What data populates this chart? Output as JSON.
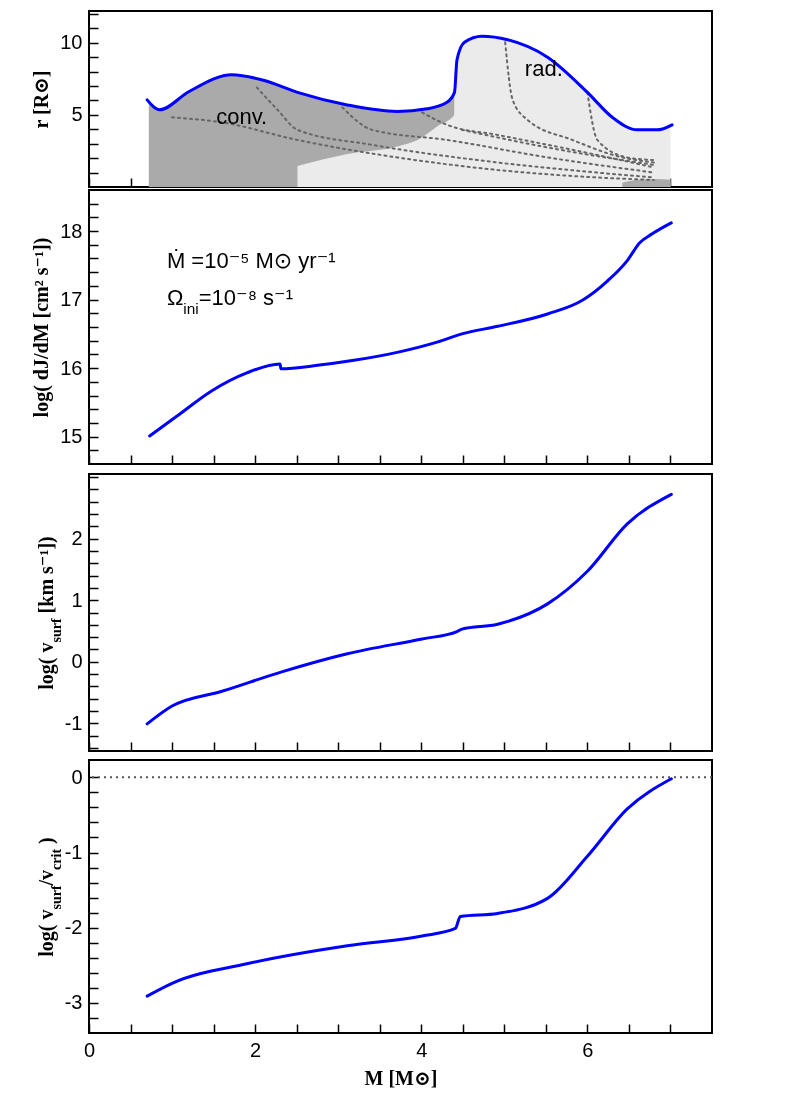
{
  "chart_data": [
    {
      "type": "line",
      "ylabel": "r [R⊙]",
      "xlim": [
        0,
        7.5
      ],
      "ylim": [
        0,
        12.2
      ],
      "tick_labels": "y",
      "grid": false,
      "xticks": [
        0,
        {
          "value": 0.5,
          "label": null
        },
        {
          "value": 1,
          "label": null
        },
        {
          "value": 1.5,
          "label": null
        },
        2,
        {
          "value": 2.5,
          "label": null
        },
        {
          "value": 3,
          "label": null
        },
        {
          "value": 3.5,
          "label": null
        },
        4,
        {
          "value": 4.5,
          "label": null
        },
        {
          "value": 5,
          "label": null
        },
        {
          "value": 5.5,
          "label": null
        },
        6,
        {
          "value": 6.5,
          "label": null
        },
        {
          "value": 7,
          "label": null
        }
      ],
      "yticks": [
        {
          "value": 1,
          "label": null
        },
        {
          "value": 2,
          "label": null
        },
        {
          "value": 3,
          "label": null
        },
        {
          "value": 4,
          "label": null
        },
        5,
        {
          "value": 6,
          "label": null
        },
        {
          "value": 7,
          "label": null
        },
        {
          "value": 8,
          "label": null
        },
        {
          "value": 9,
          "label": null
        },
        10,
        {
          "value": 11,
          "label": null
        },
        {
          "value": 12,
          "label": null
        }
      ],
      "series": [
        {
          "type": "area",
          "color": "#aaaaaa",
          "x": [
            0.72,
            0.85,
            1.2,
            1.72,
            2.1,
            2.51,
            3.11,
            3.71,
            4.07,
            4.31,
            4.4
          ],
          "values": [
            5.9,
            5.35,
            6.6,
            7.78,
            7.4,
            6.56,
            5.69,
            5.24,
            5.42,
            5.87,
            6.56
          ]
        },
        {
          "type": "area",
          "color": "#ebebeb",
          "x": [
            2.51,
            3.11,
            3.71,
            3.98,
            4.19,
            4.4,
            4.41,
            4.43,
            4.52,
            4.73,
            5.04,
            5.52,
            6.0,
            6.3,
            6.6,
            6.84,
            7.0
          ],
          "values": [
            1.46,
            2.29,
            2.81,
            3.33,
            4.2,
            5.0,
            6.6,
            8.82,
            10.03,
            10.45,
            10.21,
            9.0,
            6.56,
            4.83,
            3.96,
            3.96,
            4.25
          ]
        },
        {
          "type": "area",
          "color": "#aaaaaa",
          "x": [
            6.42,
            6.6,
            6.8,
            7.0
          ],
          "values": [
            0.3,
            0.5,
            0.55,
            0.5
          ]
        },
        {
          "color": "#666666",
          "line_style": "dotted",
          "x": [
            1.0,
            1.6,
            2.51,
            3.71,
            4.92,
            6.12,
            6.8
          ],
          "values": [
            4.83,
            4.48,
            3.26,
            2.05,
            1.18,
            0.66,
            0.49
          ]
        },
        {
          "color": "#666666",
          "line_style": "dotted",
          "x": [
            2.02,
            2.27,
            2.51,
            3.41,
            4.92,
            6.12,
            6.8
          ],
          "values": [
            6.9,
            5.35,
            3.96,
            2.92,
            1.7,
            1.0,
            0.66
          ]
        },
        {
          "color": "#666666",
          "line_style": "dotted",
          "x": [
            3.05,
            3.41,
            4.31,
            5.52,
            6.8
          ],
          "values": [
            5.52,
            3.96,
            3.26,
            2.05,
            1.0
          ]
        },
        {
          "color": "#666666",
          "line_style": "dotted",
          "x": [
            4.01,
            4.31,
            4.92,
            6.12,
            6.8
          ],
          "values": [
            5.17,
            4.31,
            3.61,
            2.22,
            1.35
          ]
        },
        {
          "color": "#666666",
          "line_style": "dotted",
          "x": [
            4.49,
            5.52,
            6.8
          ],
          "values": [
            3.96,
            2.74,
            1.53
          ]
        },
        {
          "color": "#666666",
          "line_style": "dotted",
          "x": [
            5.01,
            5.1,
            5.28,
            5.82,
            6.42,
            6.8
          ],
          "values": [
            10.03,
            6.04,
            4.65,
            3.26,
            2.05,
            1.7
          ]
        },
        {
          "color": "#666666",
          "line_style": "dotted",
          "x": [
            6.0,
            6.12,
            6.48,
            6.8
          ],
          "values": [
            6.56,
            3.26,
            2.05,
            1.87
          ]
        },
        {
          "color": "#0000ff",
          "x": [
            0.7,
            0.85,
            1.2,
            1.72,
            2.1,
            2.51,
            3.11,
            3.71,
            4.07,
            4.31,
            4.4,
            4.43,
            4.52,
            4.73,
            5.04,
            5.52,
            6.0,
            6.3,
            6.6,
            6.84,
            7.02
          ],
          "values": [
            6.04,
            5.35,
            6.6,
            7.78,
            7.4,
            6.56,
            5.69,
            5.24,
            5.42,
            5.87,
            6.56,
            8.82,
            10.03,
            10.45,
            10.21,
            9.0,
            6.56,
            4.83,
            3.96,
            3.96,
            4.31
          ]
        }
      ],
      "annotations": [
        "conv.",
        "rad."
      ]
    },
    {
      "type": "line",
      "ylabel": "log( dJ/dM [cm² s⁻¹])",
      "xlim": [
        0,
        7.5
      ],
      "ylim": [
        14.6,
        18.6
      ],
      "tick_labels": "y",
      "grid": false,
      "xticks": [
        0,
        {
          "value": 0.5,
          "label": null
        },
        {
          "value": 1,
          "label": null
        },
        {
          "value": 1.5,
          "label": null
        },
        2,
        {
          "value": 2.5,
          "label": null
        },
        {
          "value": 3,
          "label": null
        },
        {
          "value": 3.5,
          "label": null
        },
        4,
        {
          "value": 4.5,
          "label": null
        },
        {
          "value": 5,
          "label": null
        },
        {
          "value": 5.5,
          "label": null
        },
        6,
        {
          "value": 6.5,
          "label": null
        },
        {
          "value": 7,
          "label": null
        }
      ],
      "yticks": [
        {
          "value": 14.8,
          "label": null
        },
        15,
        {
          "value": 15.2,
          "label": null
        },
        {
          "value": 15.4,
          "label": null
        },
        {
          "value": 15.6,
          "label": null
        },
        {
          "value": 15.8,
          "label": null
        },
        16,
        {
          "value": 16.2,
          "label": null
        },
        {
          "value": 16.4,
          "label": null
        },
        {
          "value": 16.6,
          "label": null
        },
        {
          "value": 16.8,
          "label": null
        },
        17,
        {
          "value": 17.2,
          "label": null
        },
        {
          "value": 17.4,
          "label": null
        },
        {
          "value": 17.6,
          "label": null
        },
        {
          "value": 17.8,
          "label": null
        },
        18,
        {
          "value": 18.2,
          "label": null
        },
        {
          "value": 18.4,
          "label": null
        }
      ],
      "series": [
        {
          "color": "#0000ff",
          "x": [
            0.73,
            1.06,
            1.48,
            1.9,
            2.3,
            2.31,
            2.75,
            3.17,
            3.71,
            4.19,
            4.49,
            4.92,
            5.52,
            5.94,
            6.24,
            6.48,
            6.63,
            6.78,
            7.01
          ],
          "values": [
            15.01,
            15.3,
            15.67,
            15.93,
            16.06,
            15.99,
            16.04,
            16.11,
            16.23,
            16.38,
            16.5,
            16.61,
            16.79,
            16.99,
            17.27,
            17.57,
            17.83,
            17.96,
            18.12
          ]
        }
      ],
      "annotations": [
        "Ṁ  =10⁻⁵ M⊙ yr⁻¹",
        "Ω$_{ini}$=10⁻⁸ s⁻¹"
      ]
    },
    {
      "type": "line",
      "ylabel": "log( v$_{surf}$ [km s⁻¹])",
      "xlim": [
        0,
        7.5
      ],
      "ylim": [
        -1.45,
        3.05
      ],
      "tick_labels": "y",
      "grid": false,
      "xticks": [
        0,
        {
          "value": 0.5,
          "label": null
        },
        {
          "value": 1,
          "label": null
        },
        {
          "value": 1.5,
          "label": null
        },
        2,
        {
          "value": 2.5,
          "label": null
        },
        {
          "value": 3,
          "label": null
        },
        {
          "value": 3.5,
          "label": null
        },
        4,
        {
          "value": 4.5,
          "label": null
        },
        {
          "value": 5,
          "label": null
        },
        {
          "value": 5.5,
          "label": null
        },
        6,
        {
          "value": 6.5,
          "label": null
        },
        {
          "value": 7,
          "label": null
        }
      ],
      "yticks": [
        {
          "value": -1.4,
          "label": null
        },
        {
          "value": -1.2,
          "label": null
        },
        -1,
        {
          "value": -0.8,
          "label": null
        },
        {
          "value": -0.6,
          "label": null
        },
        {
          "value": -0.4,
          "label": null
        },
        {
          "value": -0.2,
          "label": null
        },
        0,
        {
          "value": 0.2,
          "label": null
        },
        {
          "value": 0.4,
          "label": null
        },
        {
          "value": 0.6,
          "label": null
        },
        {
          "value": 0.8,
          "label": null
        },
        1,
        {
          "value": 1.2,
          "label": null
        },
        {
          "value": 1.4,
          "label": null
        },
        {
          "value": 1.6,
          "label": null
        },
        {
          "value": 1.8,
          "label": null
        },
        2,
        {
          "value": 2.2,
          "label": null
        },
        {
          "value": 2.4,
          "label": null
        },
        {
          "value": 2.6,
          "label": null
        },
        {
          "value": 2.8,
          "label": null
        },
        {
          "value": 3,
          "label": null
        }
      ],
      "series": [
        {
          "color": "#0000ff",
          "x": [
            0.7,
            1.0,
            1.6,
            2.33,
            3.11,
            4.01,
            4.43,
            4.49,
            4.92,
            5.52,
            6.0,
            6.48,
            7.01
          ],
          "values": [
            -1.01,
            -0.72,
            -0.48,
            -0.16,
            0.13,
            0.37,
            0.49,
            0.53,
            0.61,
            0.94,
            1.47,
            2.24,
            2.72
          ]
        }
      ]
    },
    {
      "type": "line",
      "xlabel": "M [M⊙]",
      "ylabel": "log( v$_{surf}$/v$_{crit}$ )",
      "xlim": [
        0,
        7.5
      ],
      "ylim": [
        -3.4,
        0.23
      ],
      "grid": false,
      "xticks": [
        0,
        {
          "value": 0.5,
          "label": null
        },
        {
          "value": 1,
          "label": null
        },
        {
          "value": 1.5,
          "label": null
        },
        2,
        {
          "value": 2.5,
          "label": null
        },
        {
          "value": 3,
          "label": null
        },
        {
          "value": 3.5,
          "label": null
        },
        4,
        {
          "value": 4.5,
          "label": null
        },
        {
          "value": 5,
          "label": null
        },
        {
          "value": 5.5,
          "label": null
        },
        6,
        {
          "value": 6.5,
          "label": null
        },
        {
          "value": 7,
          "label": null
        }
      ],
      "yticks": [
        {
          "value": -3.2,
          "label": null
        },
        -3,
        {
          "value": -2.8,
          "label": null
        },
        {
          "value": -2.6,
          "label": null
        },
        {
          "value": -2.4,
          "label": null
        },
        {
          "value": -2.2,
          "label": null
        },
        -2,
        {
          "value": -1.8,
          "label": null
        },
        {
          "value": -1.6,
          "label": null
        },
        {
          "value": -1.4,
          "label": null
        },
        {
          "value": -1.2,
          "label": null
        },
        -1,
        {
          "value": -0.8,
          "label": null
        },
        {
          "value": -0.6,
          "label": null
        },
        {
          "value": -0.4,
          "label": null
        },
        {
          "value": -0.2,
          "label": null
        },
        0
      ],
      "series": [
        {
          "color": "#0000ff",
          "x": [
            0.7,
            1.0,
            1.9,
            3.11,
            4.01,
            4.41,
            4.47,
            4.92,
            5.52,
            6.0,
            6.48,
            7.01
          ],
          "values": [
            -2.91,
            -2.74,
            -2.48,
            -2.24,
            -2.11,
            -2.01,
            -1.85,
            -1.81,
            -1.61,
            -1.05,
            -0.42,
            -0.02
          ]
        }
      ],
      "ref_lines": [
        {
          "axis": "y",
          "value": 0,
          "color": "#555555",
          "line_style": "dotted"
        }
      ]
    }
  ]
}
